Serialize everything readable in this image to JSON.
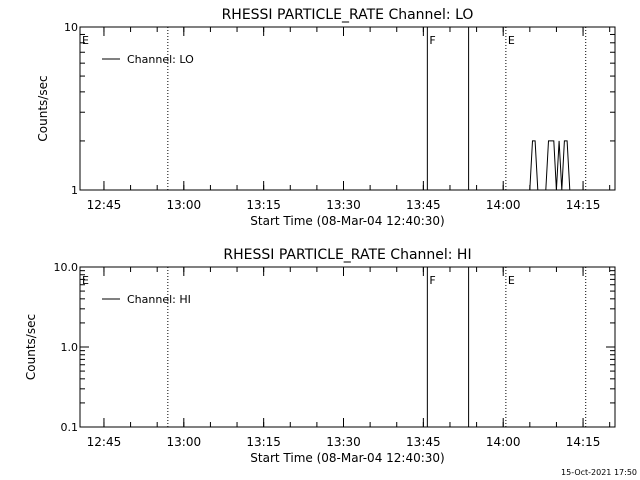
{
  "footer": {
    "timestamp": "15-Oct-2021 17:50"
  },
  "chart_data": [
    {
      "type": "line",
      "title": "RHESSI PARTICLE_RATE Channel: LO",
      "xlabel": "Start Time (08-Mar-04 12:40:30)",
      "ylabel": "Counts/sec",
      "y_scale": "log",
      "ylim": [
        1,
        10
      ],
      "y_ticks": [
        {
          "value": 10,
          "label": "10"
        },
        {
          "value": 1,
          "label": "1"
        }
      ],
      "xlim": [
        "12:40:30",
        "14:21:00"
      ],
      "x_ticks": [
        "12:45",
        "13:00",
        "13:15",
        "13:30",
        "13:45",
        "14:00",
        "14:15"
      ],
      "legend": {
        "position": "top-left",
        "entries": [
          "Channel: LO"
        ]
      },
      "series": [
        {
          "name": "Channel: LO",
          "x": [
            "12:40:30",
            "14:05:00",
            "14:05:30",
            "14:06:00",
            "14:06:30",
            "14:07:00",
            "14:08:00",
            "14:08:30",
            "14:09:00",
            "14:09:30",
            "14:10:00",
            "14:10:30",
            "14:11:00",
            "14:11:30",
            "14:12:00",
            "14:12:30",
            "14:13:00",
            "14:21:00"
          ],
          "y": [
            1,
            1,
            2,
            2,
            1,
            1,
            1,
            2,
            2,
            2,
            1,
            2,
            1,
            2,
            2,
            1,
            1,
            1
          ]
        }
      ],
      "markers": [
        {
          "time": "12:40:30",
          "style": "edge",
          "label": "E"
        },
        {
          "time": "12:57:00",
          "style": "dotted",
          "label": ""
        },
        {
          "time": "13:45:45",
          "style": "solid",
          "label": "F"
        },
        {
          "time": "13:53:30",
          "style": "solid",
          "label": ""
        },
        {
          "time": "14:00:30",
          "style": "dotted",
          "label": "E"
        },
        {
          "time": "14:15:30",
          "style": "dotted",
          "label": ""
        }
      ]
    },
    {
      "type": "line",
      "title": "RHESSI PARTICLE_RATE Channel: HI",
      "xlabel": "Start Time (08-Mar-04 12:40:30)",
      "ylabel": "Counts/sec",
      "y_scale": "log",
      "ylim": [
        0.1,
        10
      ],
      "y_ticks": [
        {
          "value": 10,
          "label": "10.0"
        },
        {
          "value": 1,
          "label": "1.0"
        },
        {
          "value": 0.1,
          "label": "0.1"
        }
      ],
      "xlim": [
        "12:40:30",
        "14:21:00"
      ],
      "x_ticks": [
        "12:45",
        "13:00",
        "13:15",
        "13:30",
        "13:45",
        "14:00",
        "14:15"
      ],
      "legend": {
        "position": "top-left",
        "entries": [
          "Channel: HI"
        ]
      },
      "series": [
        {
          "name": "Channel: HI",
          "x": [],
          "y": []
        }
      ],
      "markers": [
        {
          "time": "12:40:30",
          "style": "edge",
          "label": "E"
        },
        {
          "time": "12:57:00",
          "style": "dotted",
          "label": ""
        },
        {
          "time": "13:45:45",
          "style": "solid",
          "label": "F"
        },
        {
          "time": "13:53:30",
          "style": "solid",
          "label": ""
        },
        {
          "time": "14:00:30",
          "style": "dotted",
          "label": "E"
        },
        {
          "time": "14:15:30",
          "style": "dotted",
          "label": ""
        }
      ]
    }
  ]
}
